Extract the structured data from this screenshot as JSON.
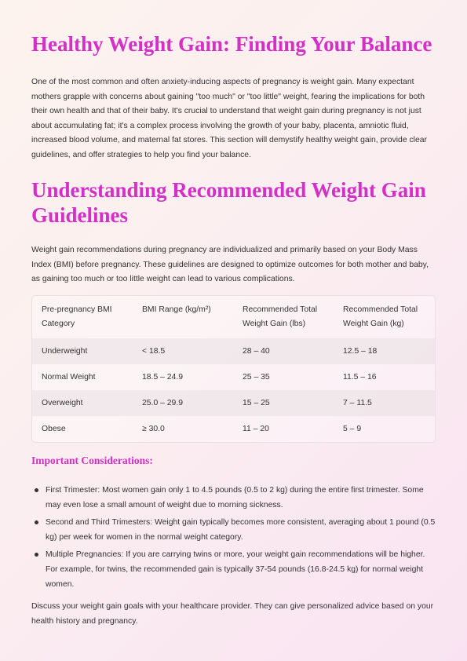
{
  "title": "Healthy Weight Gain: Finding Your Balance",
  "intro": "One of the most common and often anxiety-inducing aspects of pregnancy is weight gain. Many expectant mothers grapple with concerns about gaining \"too much\" or \"too little\" weight, fearing the implications for both their own health and that of their baby. It's crucial to understand that weight gain during pregnancy is not just about accumulating fat; it's a complex process involving the growth of your baby, placenta, amniotic fluid, increased blood volume, and maternal fat stores. This section will demystify healthy weight gain, provide clear guidelines, and offer strategies to help you find your balance.",
  "section_title": "Understanding Recommended Weight Gain Guidelines",
  "section_intro": "Weight gain recommendations during pregnancy are individualized and primarily based on your Body Mass Index (BMI) before pregnancy. These guidelines are designed to optimize outcomes for both mother and baby, as gaining too much or too little weight can lead to various complications.",
  "table": {
    "headers": [
      "Pre-pregnancy BMI Category",
      "BMI Range (kg/m²)",
      "Recommended Total Weight Gain (lbs)",
      "Recommended Total Weight Gain (kg)"
    ],
    "rows": [
      [
        "Underweight",
        "< 18.5",
        "28 – 40",
        "12.5 – 18"
      ],
      [
        "Normal Weight",
        "18.5 – 24.9",
        "25 – 35",
        "11.5 – 16"
      ],
      [
        "Overweight",
        "25.0 – 29.9",
        "15 – 25",
        "7 – 11.5"
      ],
      [
        "Obese",
        "≥ 30.0",
        "11 – 20",
        "5 – 9"
      ]
    ]
  },
  "considerations_title": "Important Considerations:",
  "considerations": [
    "First Trimester: Most women gain only 1 to 4.5 pounds (0.5 to 2 kg) during the entire first trimester. Some may even lose a small amount of weight due to morning sickness.",
    "Second and Third Trimesters: Weight gain typically becomes more consistent, averaging about 1 pound (0.5 kg) per week for women in the normal weight category.",
    "Multiple Pregnancies: If you are carrying twins or more, your weight gain recommendations will be higher. For example, for twins, the recommended gain is typically 37-54 pounds (16.8-24.5 kg) for normal weight women."
  ],
  "closing": "Discuss your weight gain goals with your healthcare provider. They can give personalized advice based on your health history and pregnancy.",
  "colors": {
    "heading": "#d42fc6",
    "text": "#333333"
  }
}
